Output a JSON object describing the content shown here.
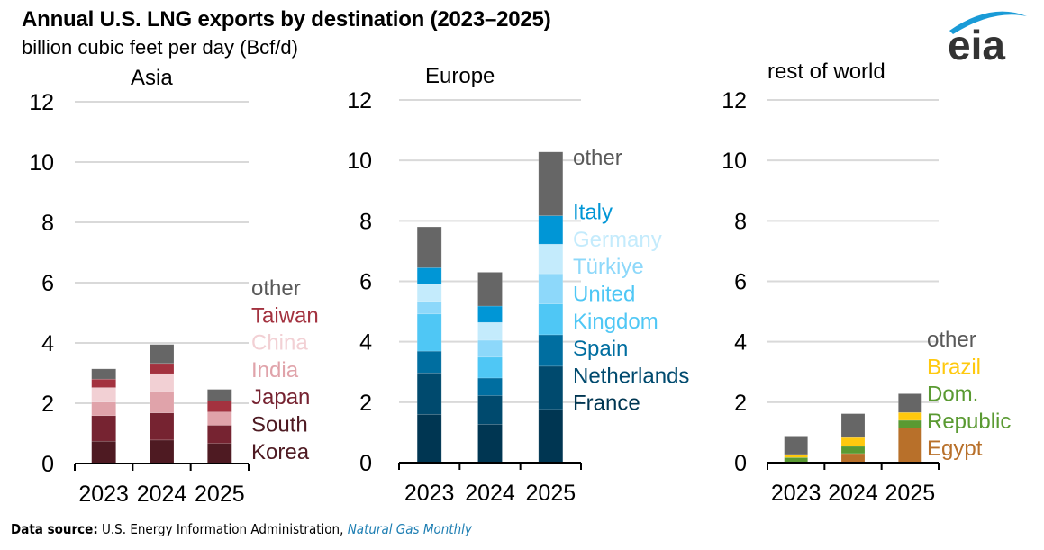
{
  "header": {
    "title": "Annual U.S. LNG exports by destination (2023–2025)",
    "subtitle": "billion cubic feet per day (Bcf/d)"
  },
  "footer": {
    "source_label": "Data source:",
    "source_text": " U.S. Energy Information Administration, ",
    "publication": "Natural Gas Monthly"
  },
  "logo": {
    "text": "eia",
    "arc_color": "#1a9bd7",
    "text_color": "#333333"
  },
  "chart_data": [
    {
      "type": "bar",
      "stacked": true,
      "title": "Asia",
      "ylabel": "billion cubic feet per day (Bcf/d)",
      "ylim": [
        0,
        12
      ],
      "yticks": [
        0,
        2,
        4,
        6,
        8,
        10,
        12
      ],
      "grid": true,
      "categories": [
        "2023",
        "2024",
        "2025"
      ],
      "series": [
        {
          "name": "South Korea",
          "label_lines": [
            "South",
            "Korea"
          ],
          "color": "#4e1a22",
          "values": [
            0.74,
            0.78,
            0.67
          ]
        },
        {
          "name": "Japan",
          "label_lines": [
            "Japan"
          ],
          "color": "#762331",
          "values": [
            0.85,
            0.9,
            0.6
          ]
        },
        {
          "name": "India",
          "label_lines": [
            "India"
          ],
          "color": "#e0a3aa",
          "values": [
            0.45,
            0.72,
            0.44
          ]
        },
        {
          "name": "China",
          "label_lines": [
            "China"
          ],
          "color": "#f2d0d4",
          "values": [
            0.48,
            0.58,
            0.0
          ]
        },
        {
          "name": "Taiwan",
          "label_lines": [
            "Taiwan"
          ],
          "color": "#a3323f",
          "values": [
            0.28,
            0.34,
            0.37
          ]
        },
        {
          "name": "other",
          "label_lines": [
            "other"
          ],
          "color": "#666666",
          "values": [
            0.34,
            0.63,
            0.38
          ]
        }
      ],
      "legend_placement": "right"
    },
    {
      "type": "bar",
      "stacked": true,
      "title": "Europe",
      "ylim": [
        0,
        12
      ],
      "yticks": [
        0,
        2,
        4,
        6,
        8,
        10,
        12
      ],
      "grid": true,
      "categories": [
        "2023",
        "2024",
        "2025"
      ],
      "series": [
        {
          "name": "France",
          "label_lines": [
            "France"
          ],
          "color": "#003652",
          "values": [
            1.6,
            1.27,
            1.76
          ]
        },
        {
          "name": "Netherlands",
          "label_lines": [
            "Netherlands"
          ],
          "color": "#004a6e",
          "values": [
            1.37,
            0.95,
            1.43
          ]
        },
        {
          "name": "Spain",
          "label_lines": [
            "Spain"
          ],
          "color": "#006ea0",
          "values": [
            0.72,
            0.58,
            1.04
          ]
        },
        {
          "name": "United Kingdom",
          "label_lines": [
            "United",
            "Kingdom"
          ],
          "color": "#4fc7f5",
          "values": [
            1.23,
            0.69,
            1.02
          ]
        },
        {
          "name": "Türkiye",
          "label_lines": [
            "Türkiye"
          ],
          "color": "#8dd8fa",
          "values": [
            0.42,
            0.56,
            1.0
          ]
        },
        {
          "name": "Germany",
          "label_lines": [
            "Germany"
          ],
          "color": "#c4ebfc",
          "values": [
            0.56,
            0.59,
            0.98
          ]
        },
        {
          "name": "Italy",
          "label_lines": [
            "Italy"
          ],
          "color": "#0096d6",
          "values": [
            0.55,
            0.54,
            0.94
          ]
        },
        {
          "name": "other",
          "label_lines": [
            "other"
          ],
          "color": "#666666",
          "values": [
            1.35,
            1.12,
            2.11
          ]
        }
      ],
      "legend_placement": "right"
    },
    {
      "type": "bar",
      "stacked": true,
      "title": "rest of world",
      "ylim": [
        0,
        12
      ],
      "yticks": [
        0,
        2,
        4,
        6,
        8,
        10,
        12
      ],
      "grid": true,
      "categories": [
        "2023",
        "2024",
        "2025"
      ],
      "series": [
        {
          "name": "Egypt",
          "label_lines": [
            "Egypt"
          ],
          "color": "#b8702a",
          "values": [
            0.0,
            0.3,
            1.15
          ]
        },
        {
          "name": "Dom. Republic",
          "label_lines": [
            "Dom.",
            "Republic"
          ],
          "color": "#5a9a32",
          "values": [
            0.17,
            0.24,
            0.25
          ]
        },
        {
          "name": "Brazil",
          "label_lines": [
            "Brazil"
          ],
          "color": "#ffc90e",
          "values": [
            0.1,
            0.29,
            0.26
          ]
        },
        {
          "name": "other",
          "label_lines": [
            "other"
          ],
          "color": "#666666",
          "values": [
            0.61,
            0.79,
            0.62
          ]
        }
      ],
      "legend_placement": "right"
    }
  ]
}
